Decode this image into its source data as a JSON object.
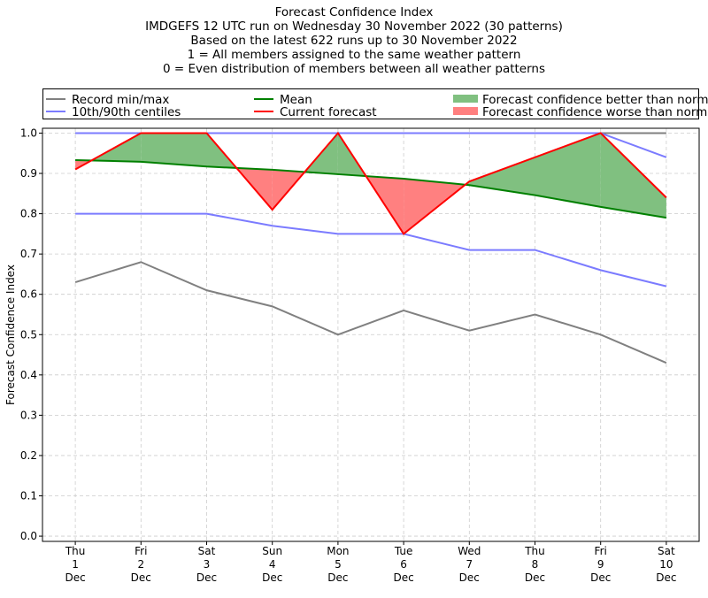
{
  "chart_data": {
    "type": "line",
    "title_lines": [
      "Forecast Confidence Index",
      "IMDGEFS 12 UTC run on Wednesday 30 November 2022 (30 patterns)",
      "Based on the latest 622 runs up to 30 November 2022",
      "1 = All members assigned to the same weather pattern",
      "0 = Even distribution of members between all weather patterns"
    ],
    "ylabel": "Forecast Confidence Index",
    "xlabel": "",
    "ylim": [
      -0.013,
      1.012
    ],
    "yticks": [
      "0.0",
      "0.1",
      "0.2",
      "0.3",
      "0.4",
      "0.5",
      "0.6",
      "0.7",
      "0.8",
      "0.9",
      "1.0"
    ],
    "grid": true,
    "legend_placement": "top, outside plot",
    "categories": [
      [
        "Thu",
        "1",
        "Dec"
      ],
      [
        "Fri",
        "2",
        "Dec"
      ],
      [
        "Sat",
        "3",
        "Dec"
      ],
      [
        "Sun",
        "4",
        "Dec"
      ],
      [
        "Mon",
        "5",
        "Dec"
      ],
      [
        "Tue",
        "6",
        "Dec"
      ],
      [
        "Wed",
        "7",
        "Dec"
      ],
      [
        "Thu",
        "8",
        "Dec"
      ],
      [
        "Fri",
        "9",
        "Dec"
      ],
      [
        "Sat",
        "10",
        "Dec"
      ]
    ],
    "series": [
      {
        "name": "Record min/max",
        "key": "record_max",
        "color": "#808080",
        "values": [
          1,
          1,
          1,
          1,
          1,
          1,
          1,
          1,
          1,
          1
        ]
      },
      {
        "name": "Record min/max",
        "key": "record_min",
        "color": "#808080",
        "values": [
          0.63,
          0.68,
          0.61,
          0.57,
          0.5,
          0.56,
          0.51,
          0.55,
          0.5,
          0.43
        ]
      },
      {
        "name": "10th/90th centiles",
        "key": "p90",
        "color": "#7b7bff",
        "values": [
          1,
          1,
          1,
          1,
          1,
          1,
          1,
          1,
          1,
          0.94
        ]
      },
      {
        "name": "10th/90th centiles",
        "key": "p10",
        "color": "#7b7bff",
        "values": [
          0.8,
          0.8,
          0.8,
          0.77,
          0.75,
          0.75,
          0.71,
          0.71,
          0.66,
          0.62
        ]
      },
      {
        "name": "Mean",
        "key": "mean",
        "color": "#008000",
        "values": [
          0.933,
          0.929,
          0.917,
          0.909,
          0.898,
          0.887,
          0.871,
          0.846,
          0.817,
          0.79
        ]
      },
      {
        "name": "Current forecast",
        "key": "current",
        "color": "#ff0000",
        "values": [
          0.91,
          1.0,
          1.0,
          0.81,
          1.0,
          0.75,
          0.88,
          0.94,
          1.0,
          0.84
        ]
      }
    ],
    "fills": [
      {
        "name": "Forecast confidence better than normal",
        "color": "#80c080"
      },
      {
        "name": "Forecast confidence worse than normal",
        "color": "#ff8080"
      }
    ],
    "legend": [
      {
        "label": "Record min/max",
        "kind": "line",
        "color": "#808080"
      },
      {
        "label": "10th/90th centiles",
        "kind": "line",
        "color": "#7b7bff"
      },
      {
        "label": "Mean",
        "kind": "line",
        "color": "#008000"
      },
      {
        "label": "Current forecast",
        "kind": "line",
        "color": "#ff0000"
      },
      {
        "label": "Forecast confidence better than normal",
        "kind": "patch",
        "color": "#80c080"
      },
      {
        "label": "Forecast confidence worse than normal",
        "kind": "patch",
        "color": "#ff8080"
      }
    ]
  }
}
